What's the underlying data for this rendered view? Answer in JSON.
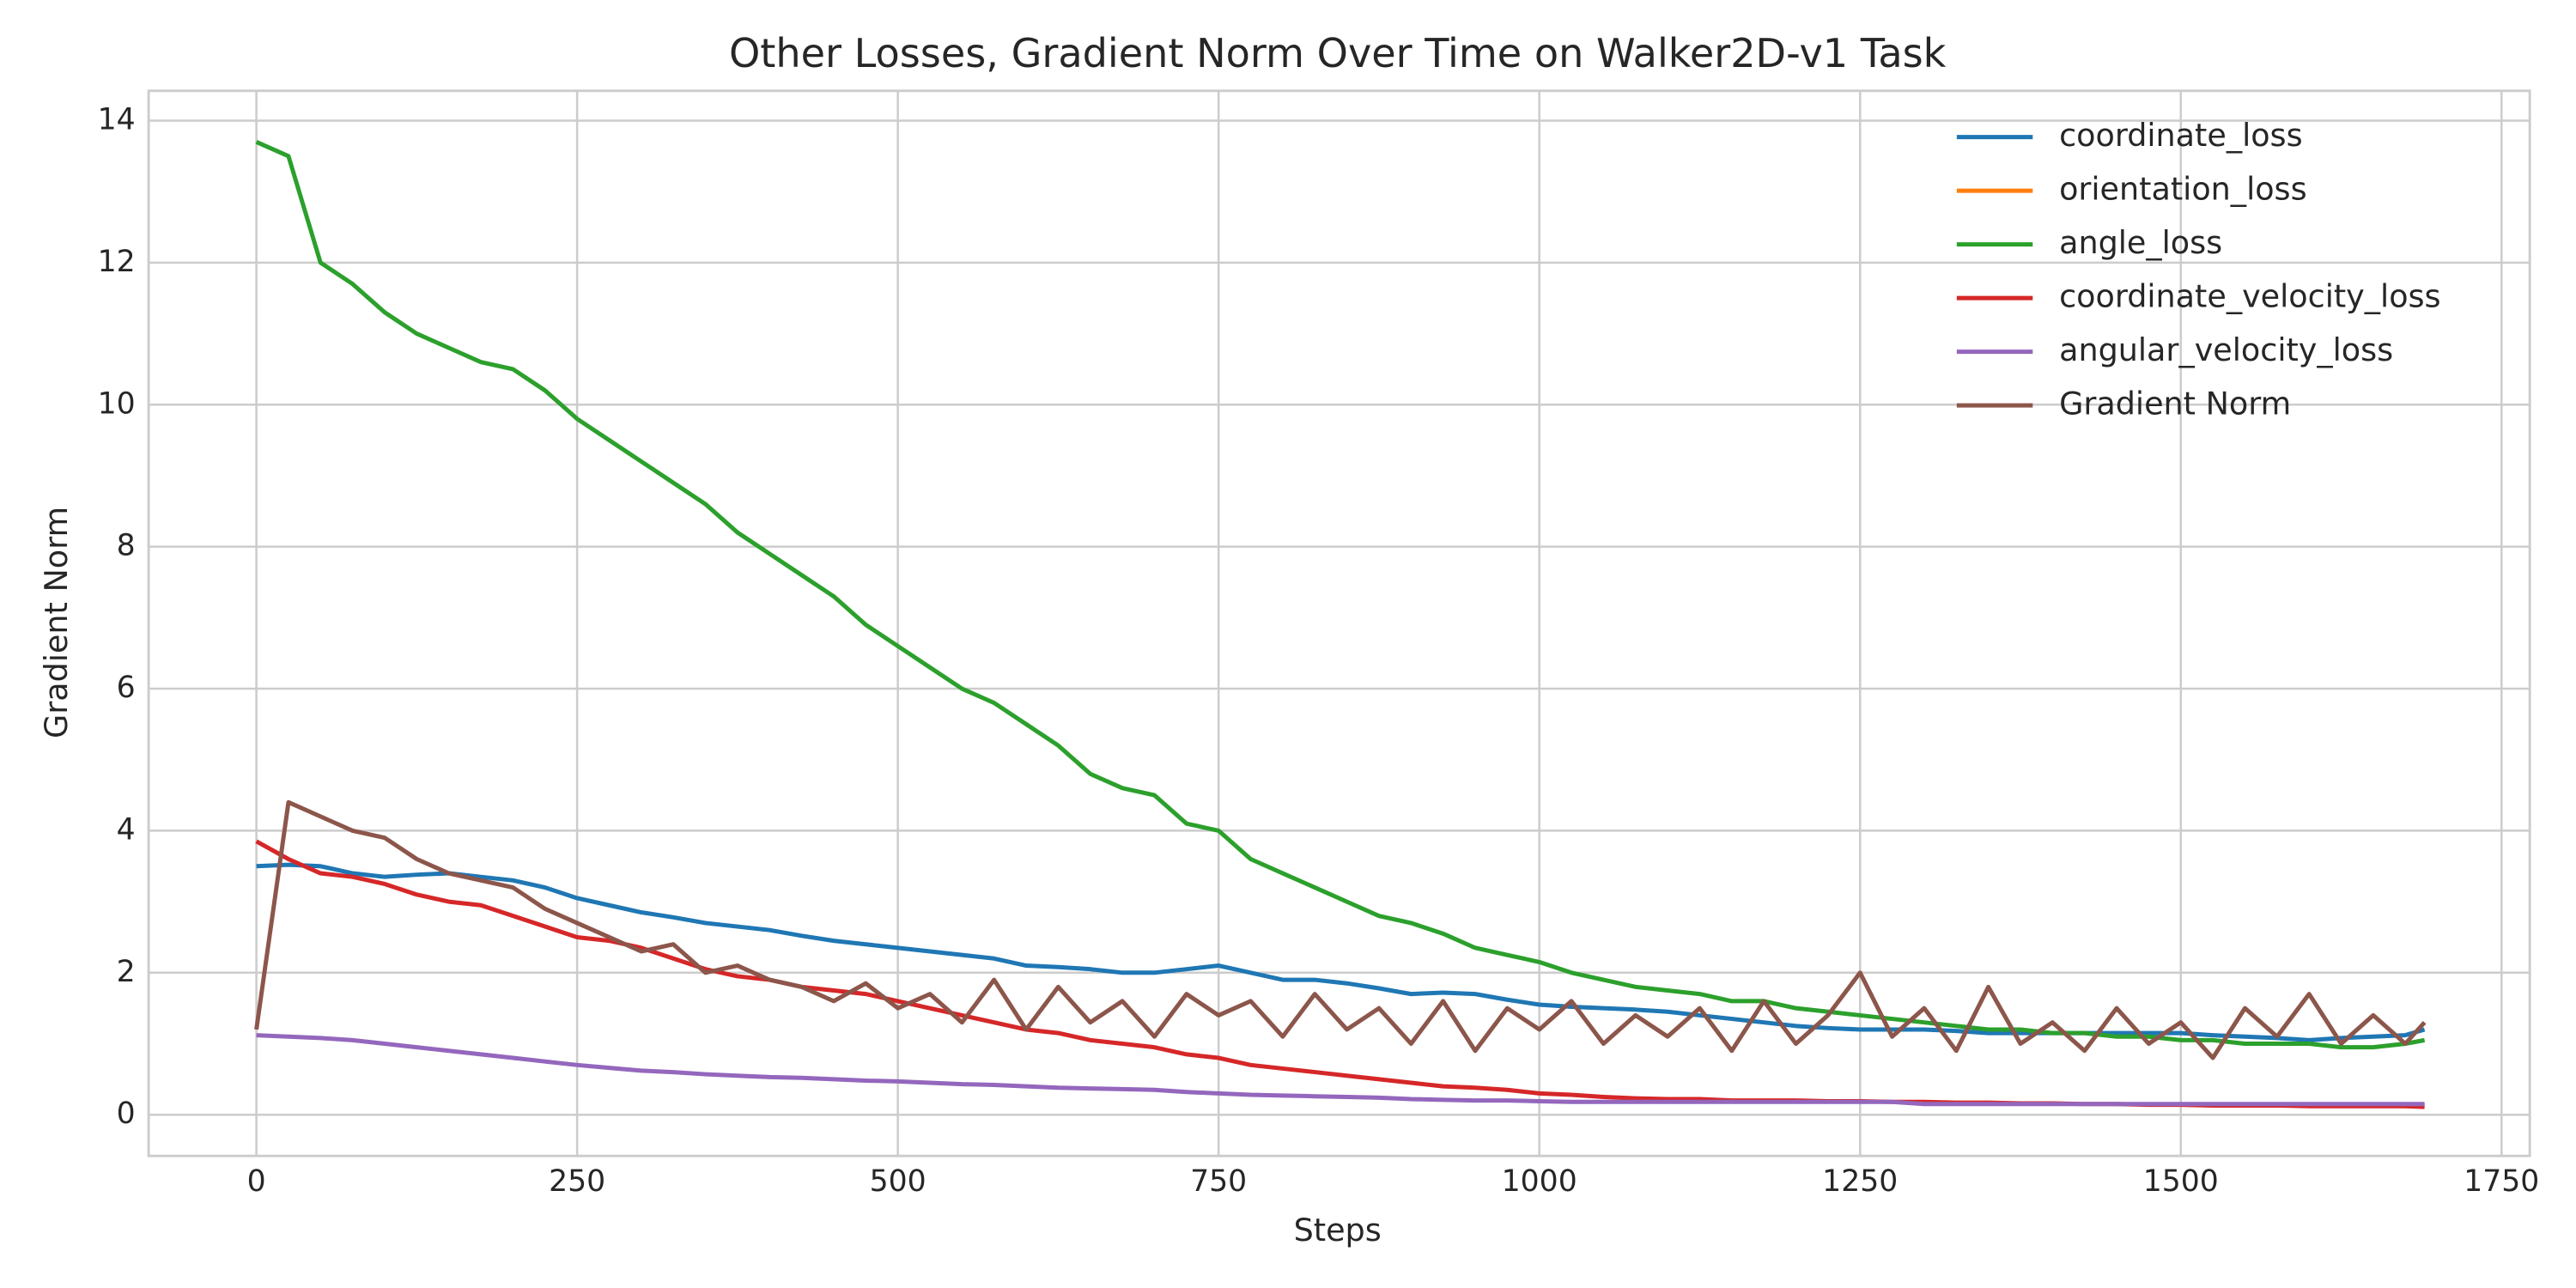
{
  "chart_data": {
    "type": "line",
    "title": "Other Losses, Gradient Norm Over Time on Walker2D-v1 Task",
    "x_label": "Steps",
    "y_label": "Gradient Norm",
    "x": [
      0,
      25,
      50,
      75,
      100,
      125,
      150,
      175,
      200,
      225,
      250,
      275,
      300,
      325,
      350,
      375,
      400,
      425,
      450,
      475,
      500,
      525,
      550,
      575,
      600,
      625,
      650,
      675,
      700,
      725,
      750,
      775,
      800,
      825,
      850,
      875,
      900,
      925,
      950,
      975,
      1000,
      1025,
      1050,
      1075,
      1100,
      1125,
      1150,
      1175,
      1200,
      1225,
      1250,
      1275,
      1300,
      1325,
      1350,
      1375,
      1400,
      1425,
      1450,
      1475,
      1500,
      1525,
      1550,
      1575,
      1600,
      1625,
      1650,
      1675,
      1690
    ],
    "xlim": [
      -84,
      1772
    ],
    "ylim": [
      -0.58,
      14.42
    ],
    "xticks": [
      0,
      250,
      500,
      750,
      1000,
      1250,
      1500,
      1750
    ],
    "yticks": [
      0,
      2,
      4,
      6,
      8,
      10,
      12,
      14
    ],
    "grid": true,
    "legend": "upper right",
    "series": [
      {
        "name": "coordinate_loss",
        "color": "#1f77b4",
        "values": [
          3.5,
          3.52,
          3.5,
          3.4,
          3.35,
          3.38,
          3.4,
          3.35,
          3.3,
          3.2,
          3.05,
          2.95,
          2.85,
          2.78,
          2.7,
          2.65,
          2.6,
          2.52,
          2.45,
          2.4,
          2.35,
          2.3,
          2.25,
          2.2,
          2.1,
          2.08,
          2.05,
          2.0,
          2.0,
          2.05,
          2.1,
          2.0,
          1.9,
          1.9,
          1.85,
          1.78,
          1.7,
          1.72,
          1.7,
          1.62,
          1.55,
          1.52,
          1.5,
          1.48,
          1.45,
          1.4,
          1.35,
          1.3,
          1.25,
          1.22,
          1.2,
          1.2,
          1.2,
          1.18,
          1.15,
          1.15,
          1.15,
          1.15,
          1.15,
          1.15,
          1.15,
          1.12,
          1.1,
          1.08,
          1.05,
          1.08,
          1.1,
          1.12,
          1.2
        ]
      },
      {
        "name": "orientation_loss",
        "color": "#ff7f0e",
        "values": [
          null,
          null,
          null,
          null,
          null,
          null,
          null,
          null,
          null,
          null,
          null,
          null,
          null,
          null,
          null,
          null,
          null,
          null,
          null,
          null,
          null,
          null,
          null,
          null,
          null,
          null,
          null,
          null,
          null,
          null,
          null,
          null,
          null,
          null,
          null,
          null,
          null,
          null,
          null,
          null,
          null,
          null,
          null,
          null,
          null,
          null,
          null,
          null,
          null,
          null,
          null,
          null,
          null,
          null,
          null,
          null,
          null,
          null,
          null,
          null,
          null,
          null,
          null,
          null,
          null,
          null,
          null,
          null,
          null
        ]
      },
      {
        "name": "angle_loss",
        "color": "#2ca02c",
        "values": [
          13.7,
          13.5,
          12.0,
          11.7,
          11.3,
          11.0,
          10.8,
          10.6,
          10.5,
          10.2,
          9.8,
          9.5,
          9.2,
          8.9,
          8.6,
          8.2,
          7.9,
          7.6,
          7.3,
          6.9,
          6.6,
          6.3,
          6.0,
          5.8,
          5.5,
          5.2,
          4.8,
          4.6,
          4.5,
          4.1,
          4.0,
          3.6,
          3.4,
          3.2,
          3.0,
          2.8,
          2.7,
          2.55,
          2.35,
          2.25,
          2.15,
          2.0,
          1.9,
          1.8,
          1.75,
          1.7,
          1.6,
          1.6,
          1.5,
          1.45,
          1.4,
          1.35,
          1.3,
          1.25,
          1.2,
          1.2,
          1.15,
          1.15,
          1.1,
          1.1,
          1.05,
          1.05,
          1.0,
          1.0,
          1.0,
          0.95,
          0.95,
          1.0,
          1.05
        ]
      },
      {
        "name": "coordinate_velocity_loss",
        "color": "#d62728",
        "values": [
          3.85,
          3.6,
          3.4,
          3.35,
          3.25,
          3.1,
          3.0,
          2.95,
          2.8,
          2.65,
          2.5,
          2.45,
          2.35,
          2.2,
          2.05,
          1.95,
          1.9,
          1.8,
          1.75,
          1.7,
          1.6,
          1.5,
          1.4,
          1.3,
          1.2,
          1.15,
          1.05,
          1.0,
          0.95,
          0.85,
          0.8,
          0.7,
          0.65,
          0.6,
          0.55,
          0.5,
          0.45,
          0.4,
          0.38,
          0.35,
          0.3,
          0.28,
          0.25,
          0.23,
          0.22,
          0.22,
          0.2,
          0.2,
          0.2,
          0.19,
          0.19,
          0.18,
          0.18,
          0.17,
          0.17,
          0.16,
          0.16,
          0.15,
          0.15,
          0.14,
          0.14,
          0.13,
          0.13,
          0.13,
          0.12,
          0.12,
          0.12,
          0.12,
          0.11
        ]
      },
      {
        "name": "angular_velocity_loss",
        "color": "#9467bd",
        "values": [
          1.12,
          1.1,
          1.08,
          1.05,
          1.0,
          0.95,
          0.9,
          0.85,
          0.8,
          0.75,
          0.7,
          0.66,
          0.62,
          0.6,
          0.57,
          0.55,
          0.53,
          0.52,
          0.5,
          0.48,
          0.47,
          0.45,
          0.43,
          0.42,
          0.4,
          0.38,
          0.37,
          0.36,
          0.35,
          0.32,
          0.3,
          0.28,
          0.27,
          0.26,
          0.25,
          0.24,
          0.22,
          0.21,
          0.2,
          0.2,
          0.19,
          0.18,
          0.18,
          0.18,
          0.18,
          0.18,
          0.18,
          0.18,
          0.18,
          0.18,
          0.18,
          0.18,
          0.15,
          0.15,
          0.15,
          0.15,
          0.15,
          0.15,
          0.15,
          0.15,
          0.15,
          0.15,
          0.15,
          0.15,
          0.15,
          0.15,
          0.15,
          0.15,
          0.15
        ]
      },
      {
        "name": "Gradient Norm",
        "color": "#8c564b",
        "values": [
          1.2,
          4.4,
          4.2,
          4.0,
          3.9,
          3.6,
          3.4,
          3.3,
          3.2,
          2.9,
          2.7,
          2.5,
          2.3,
          2.4,
          2.0,
          2.1,
          1.9,
          1.8,
          1.6,
          1.85,
          1.5,
          1.7,
          1.3,
          1.9,
          1.2,
          1.8,
          1.3,
          1.6,
          1.1,
          1.7,
          1.4,
          1.6,
          1.1,
          1.7,
          1.2,
          1.5,
          1.0,
          1.6,
          0.9,
          1.5,
          1.2,
          1.6,
          1.0,
          1.4,
          1.1,
          1.5,
          0.9,
          1.6,
          1.0,
          1.4,
          2.0,
          1.1,
          1.5,
          0.9,
          1.8,
          1.0,
          1.3,
          0.9,
          1.5,
          1.0,
          1.3,
          0.8,
          1.5,
          1.1,
          1.7,
          1.0,
          1.4,
          1.0,
          1.3
        ]
      }
    ]
  }
}
